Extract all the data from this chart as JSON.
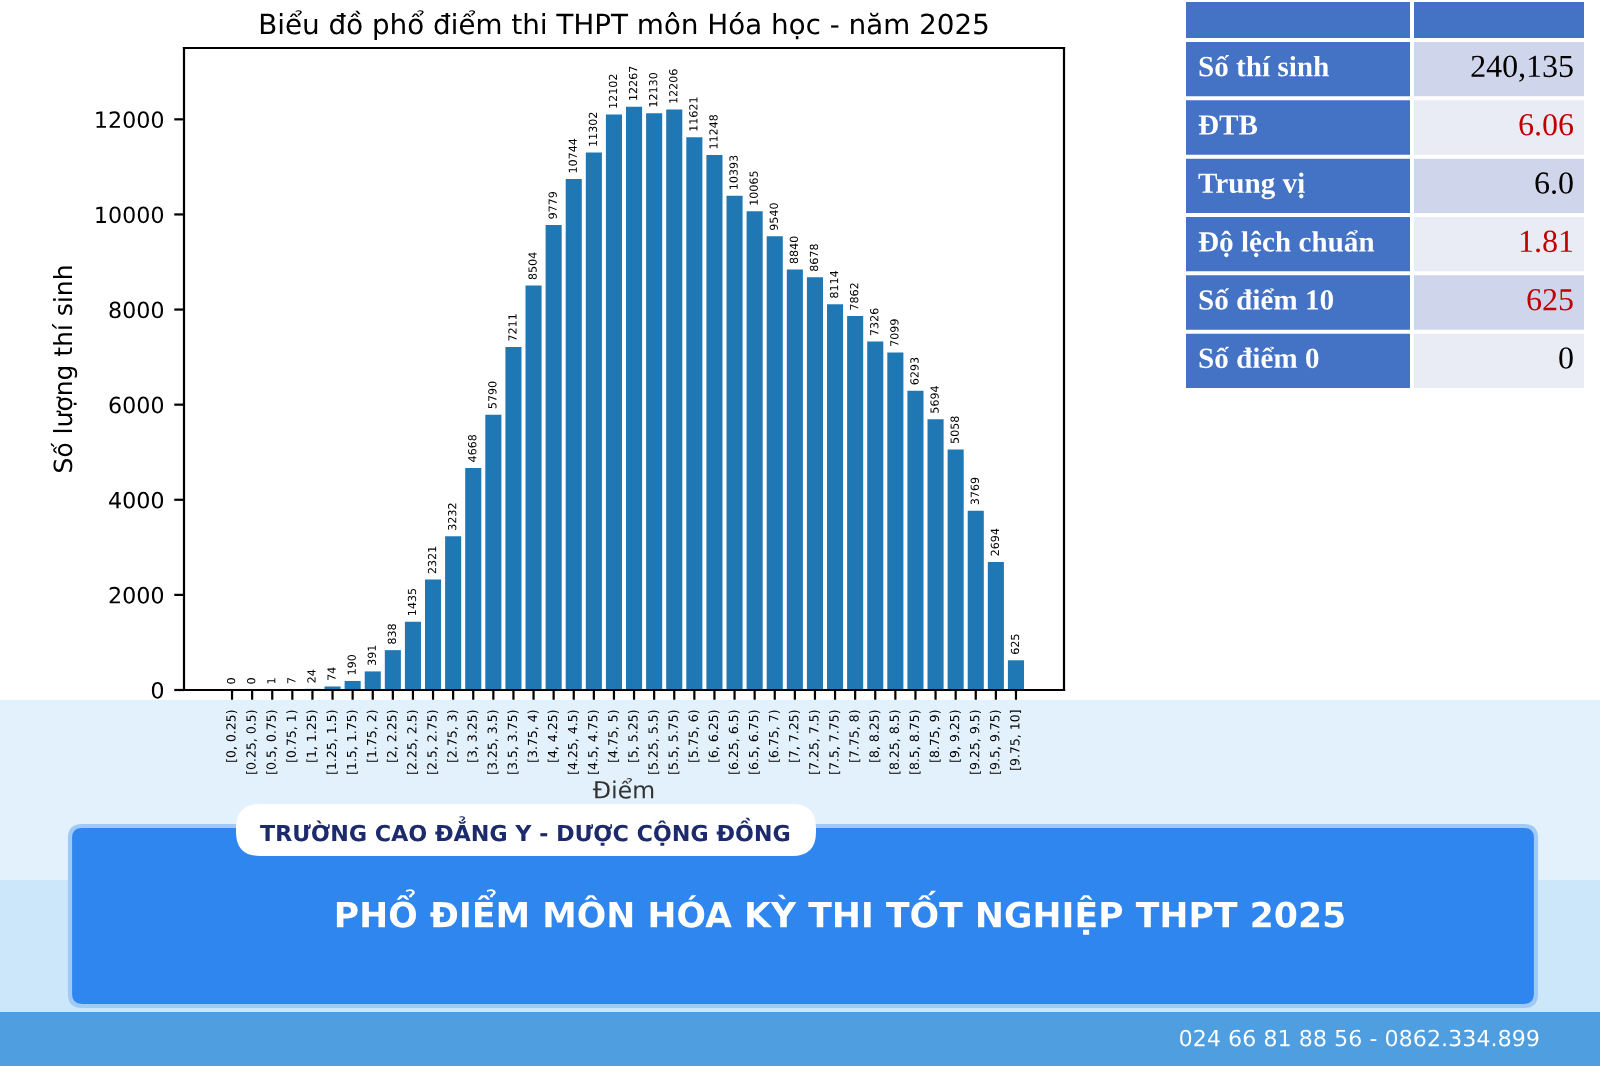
{
  "chart_data": [
    {
      "type": "bar",
      "title": "Biểu đồ phổ điểm thi THPT môn Hóa học - năm 2025",
      "xlabel": "Điểm",
      "ylabel": "Số lượng thí sinh",
      "categories": [
        "[0, 0.25)",
        "[0.25, 0.5)",
        "[0.5, 0.75)",
        "[0.75, 1)",
        "[1, 1.25)",
        "[1.25, 1.5)",
        "[1.5, 1.75)",
        "[1.75, 2)",
        "[2, 2.25)",
        "[2.25, 2.5)",
        "[2.5, 2.75)",
        "[2.75, 3)",
        "[3, 3.25)",
        "[3.25, 3.5)",
        "[3.5, 3.75)",
        "[3.75, 4)",
        "[4, 4.25)",
        "[4.25, 4.5)",
        "[4.5, 4.75)",
        "[4.75, 5)",
        "[5, 5.25)",
        "[5.25, 5.5)",
        "[5.5, 5.75)",
        "[5.75, 6)",
        "[6, 6.25)",
        "[6.25, 6.5)",
        "[6.5, 6.75)",
        "[6.75, 7)",
        "[7, 7.25)",
        "[7.25, 7.5)",
        "[7.5, 7.75)",
        "[7.75, 8)",
        "[8, 8.25)",
        "[8.25, 8.5)",
        "[8.5, 8.75)",
        "[8.75, 9)",
        "[9, 9.25)",
        "[9.25, 9.5)",
        "[9.5, 9.75)",
        "[9.75, 10]"
      ],
      "values": [
        0,
        0,
        1,
        7,
        24,
        74,
        190,
        391,
        838,
        1435,
        2321,
        3232,
        4668,
        5790,
        7211,
        8504,
        9779,
        10744,
        11302,
        12102,
        12267,
        12130,
        12206,
        11621,
        11248,
        10393,
        10065,
        9540,
        8840,
        8678,
        8114,
        7862,
        7326,
        7099,
        6293,
        5694,
        5058,
        3769,
        2694,
        625
      ],
      "color": "#1f77b4",
      "ylim": [
        0,
        13500
      ],
      "yticks": [
        0,
        2000,
        4000,
        6000,
        8000,
        10000,
        12000
      ],
      "data_labels": true
    },
    {
      "type": "other",
      "annotations": [
        "Số thí sinh",
        "240,135",
        "ĐTB",
        "6.06",
        "Trung vị",
        "6.0",
        "Độ lệch chuẩn",
        "1.81",
        "Số điểm 10",
        "625",
        "Số điểm 0",
        "0"
      ]
    },
    {
      "type": "other",
      "title": "PHỔ ĐIỂM MÔN HÓA KỲ THI TỐT NGHIỆP THPT 2025",
      "subtitle": "TRƯỜNG CAO ĐẲNG Y - DƯỢC CỘNG ĐỒNG",
      "annotations": [
        "024 66 81 88 56 - 0862.334.899"
      ]
    }
  ]
}
